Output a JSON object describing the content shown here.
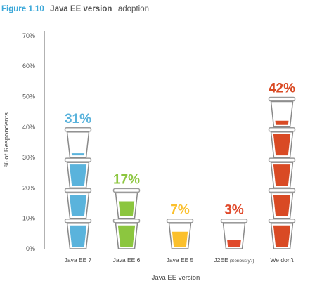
{
  "figure_label": "Figure 1.10",
  "title_bold": "Java EE version",
  "title_rest": "adoption",
  "colors": {
    "figure_label": "#3aa7d8",
    "axis": "#aaaaaa",
    "cup_outline": "#8a8a8a",
    "cup_lid": "#9b9b9b"
  },
  "icon": "takeaway-cup-icon",
  "chart_data": {
    "type": "bar",
    "style": "pictogram (stacked takeaway cups)",
    "categories": [
      "Java EE 7",
      "Java EE 6",
      "Java EE 5",
      "J2EE",
      "We don't"
    ],
    "category_notes": [
      "",
      "",
      "",
      "(Seriously?)",
      ""
    ],
    "values": [
      31,
      17,
      7,
      3,
      42
    ],
    "data_labels": [
      "31%",
      "17%",
      "7%",
      "3%",
      "42%"
    ],
    "colors": [
      "#5ab3dc",
      "#8cc63f",
      "#fbc02d",
      "#e04a2c",
      "#d94a24"
    ],
    "xlabel": "Java EE version",
    "ylabel": "% of Respondents",
    "ylim": [
      0,
      70
    ],
    "yticks": [
      "0%",
      "10%",
      "20%",
      "30%",
      "40%",
      "50%",
      "60%",
      "70%"
    ],
    "units_per_cup": 10,
    "grid": false
  }
}
